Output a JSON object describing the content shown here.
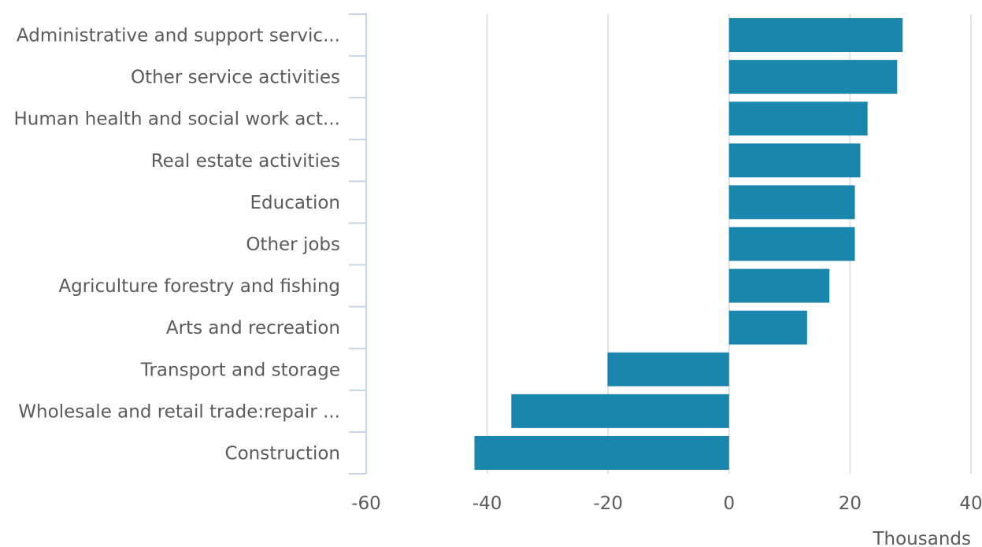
{
  "chart_data": {
    "type": "bar",
    "orientation": "horizontal",
    "categories": [
      "Administrative and support servic...",
      "Other service activities",
      "Human health and social work act...",
      "Real estate activities",
      "Education",
      "Other jobs",
      "Agriculture forestry and fishing",
      "Arts and recreation",
      "Transport and storage",
      "Wholesale and retail trade:repair ...",
      "Construction"
    ],
    "values": [
      28.7,
      27.8,
      22.9,
      21.7,
      20.8,
      20.8,
      16.6,
      12.9,
      -20.1,
      -36.0,
      -42.1
    ],
    "xlim": [
      -60,
      40
    ],
    "xticks": [
      -60,
      -40,
      -20,
      0,
      20,
      40
    ],
    "unit_label": "Thousands",
    "grid": "vertical",
    "bar_color": "#1a85ad"
  }
}
